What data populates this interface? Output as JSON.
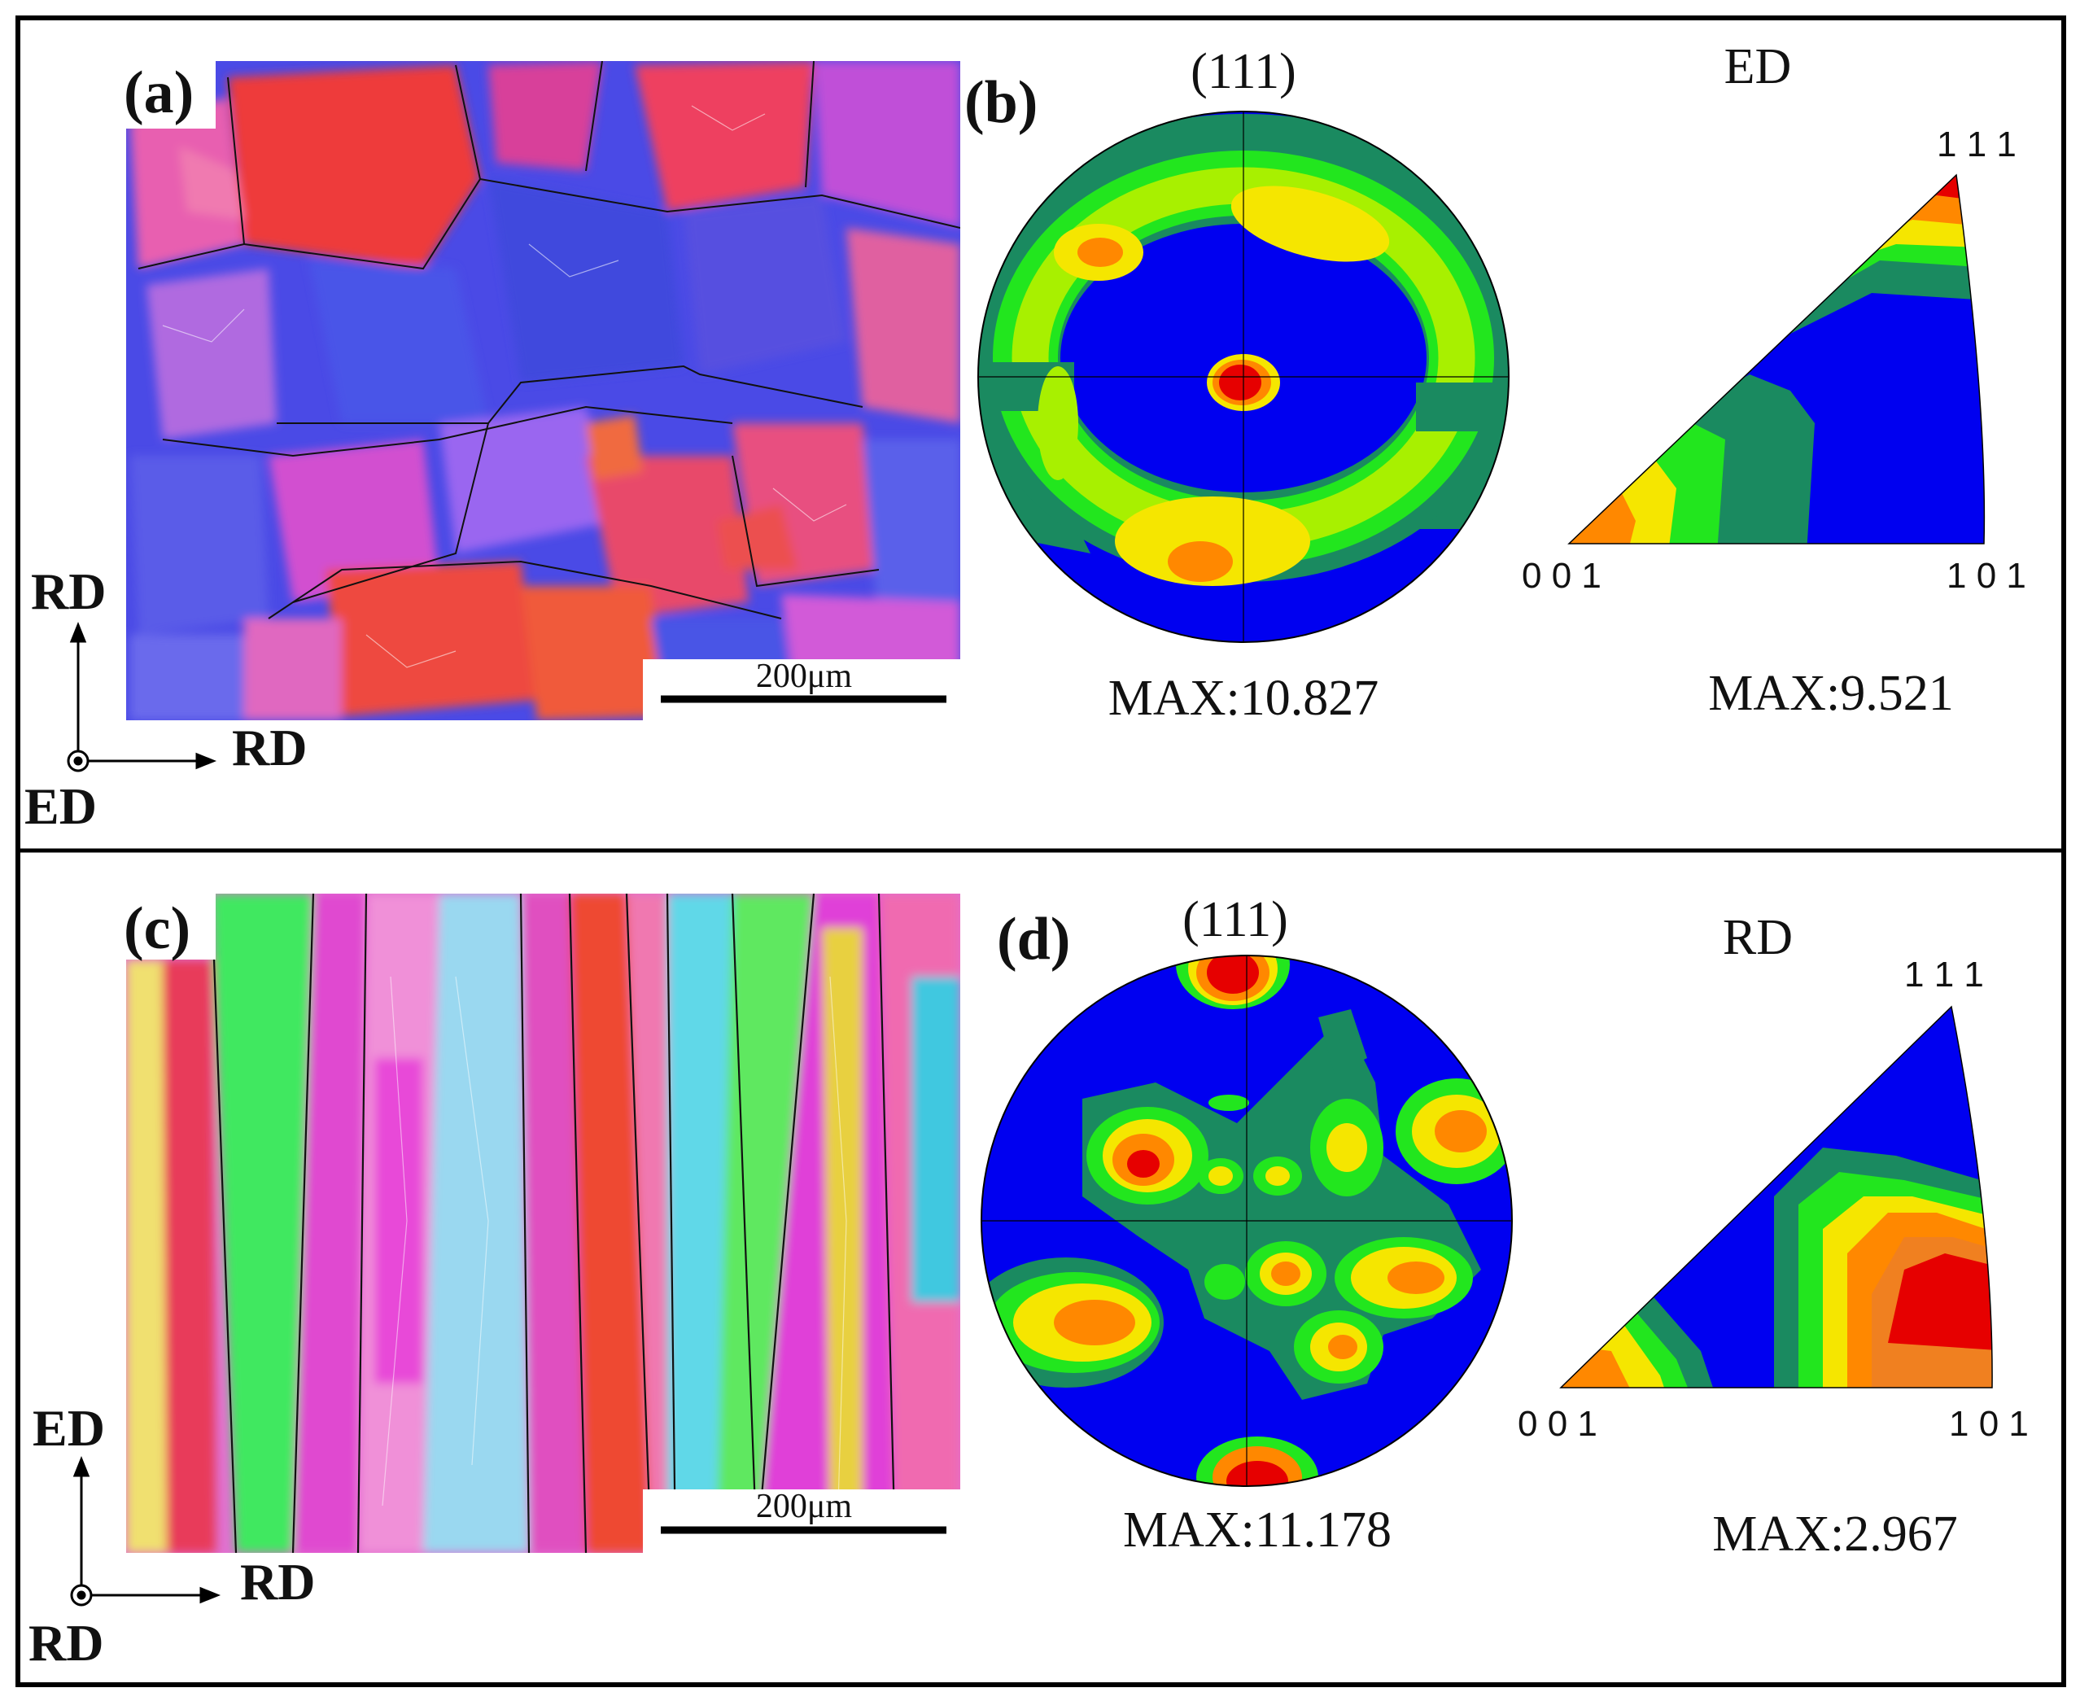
{
  "panels": {
    "a": {
      "label": "(a)",
      "scale_bar": "200μm",
      "axes": {
        "vertical": "RD",
        "horizontal": "RD",
        "normal": "ED"
      }
    },
    "b": {
      "label": "(b)",
      "pole_figure_title": "(111)",
      "pole_max": "MAX:10.827",
      "ipf_title": "ED",
      "ipf_max": "MAX:9.521",
      "ipf_corners": {
        "top": "1 1 1",
        "left": "0 0 1",
        "right": "1 0 1"
      }
    },
    "c": {
      "label": "(c)",
      "scale_bar": "200μm",
      "axes": {
        "vertical": "ED",
        "horizontal": "RD",
        "normal": "RD"
      }
    },
    "d": {
      "label": "(d)",
      "pole_figure_title": "(111)",
      "pole_max": "MAX:11.178",
      "ipf_title": "RD",
      "ipf_max": "MAX:2.967",
      "ipf_corners": {
        "top": "1 1 1",
        "left": "0 0 1",
        "right": "1 0 1"
      }
    }
  },
  "colors": {
    "contour_low": "#0000f0",
    "contour_teal": "#1a8a60",
    "contour_green": "#22e61e",
    "contour_lime": "#a8f000",
    "contour_yellow": "#f5e600",
    "contour_orange": "#ff8800",
    "contour_red": "#e60000"
  }
}
